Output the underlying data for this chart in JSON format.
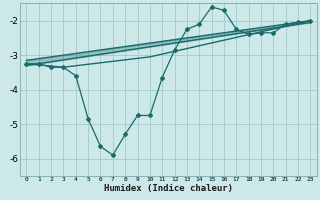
{
  "bg_color": "#cce8e8",
  "grid_color": "#a8cccc",
  "line_color": "#1a6b6b",
  "xlabel": "Humidex (Indice chaleur)",
  "ylim": [
    -6.5,
    -1.5
  ],
  "xlim": [
    -0.5,
    23.5
  ],
  "yticks": [
    -6,
    -5,
    -4,
    -3,
    -2
  ],
  "xtick_labels": [
    "0",
    "1",
    "2",
    "3",
    "4",
    "5",
    "6",
    "7",
    "8",
    "9",
    "10",
    "11",
    "12",
    "13",
    "14",
    "15",
    "16",
    "17",
    "18",
    "19",
    "20",
    "21",
    "22",
    "23"
  ],
  "xticks": [
    0,
    1,
    2,
    3,
    4,
    5,
    6,
    7,
    8,
    9,
    10,
    11,
    12,
    13,
    14,
    15,
    16,
    17,
    18,
    19,
    20,
    21,
    22,
    23
  ],
  "line1_x": [
    0,
    1,
    2,
    3,
    4,
    5,
    6,
    7,
    8,
    9,
    10,
    11,
    12,
    13,
    14,
    15,
    16,
    17,
    18,
    19,
    20,
    21,
    22,
    23
  ],
  "line1_y": [
    -3.25,
    -3.25,
    -3.35,
    -3.35,
    -3.6,
    -4.85,
    -5.65,
    -5.9,
    -5.3,
    -4.75,
    -4.75,
    -3.65,
    -2.85,
    -2.25,
    -2.1,
    -1.6,
    -1.7,
    -2.25,
    -2.4,
    -2.35,
    -2.35,
    -2.1,
    -2.05,
    -2.0
  ],
  "line2_x": [
    0,
    3,
    10,
    23
  ],
  "line2_y": [
    -3.25,
    -3.35,
    -3.05,
    -2.0
  ],
  "line3_x": [
    0,
    23
  ],
  "line3_y": [
    -3.15,
    -2.0
  ],
  "line4_x": [
    0,
    23
  ],
  "line4_y": [
    -3.3,
    -2.05
  ]
}
